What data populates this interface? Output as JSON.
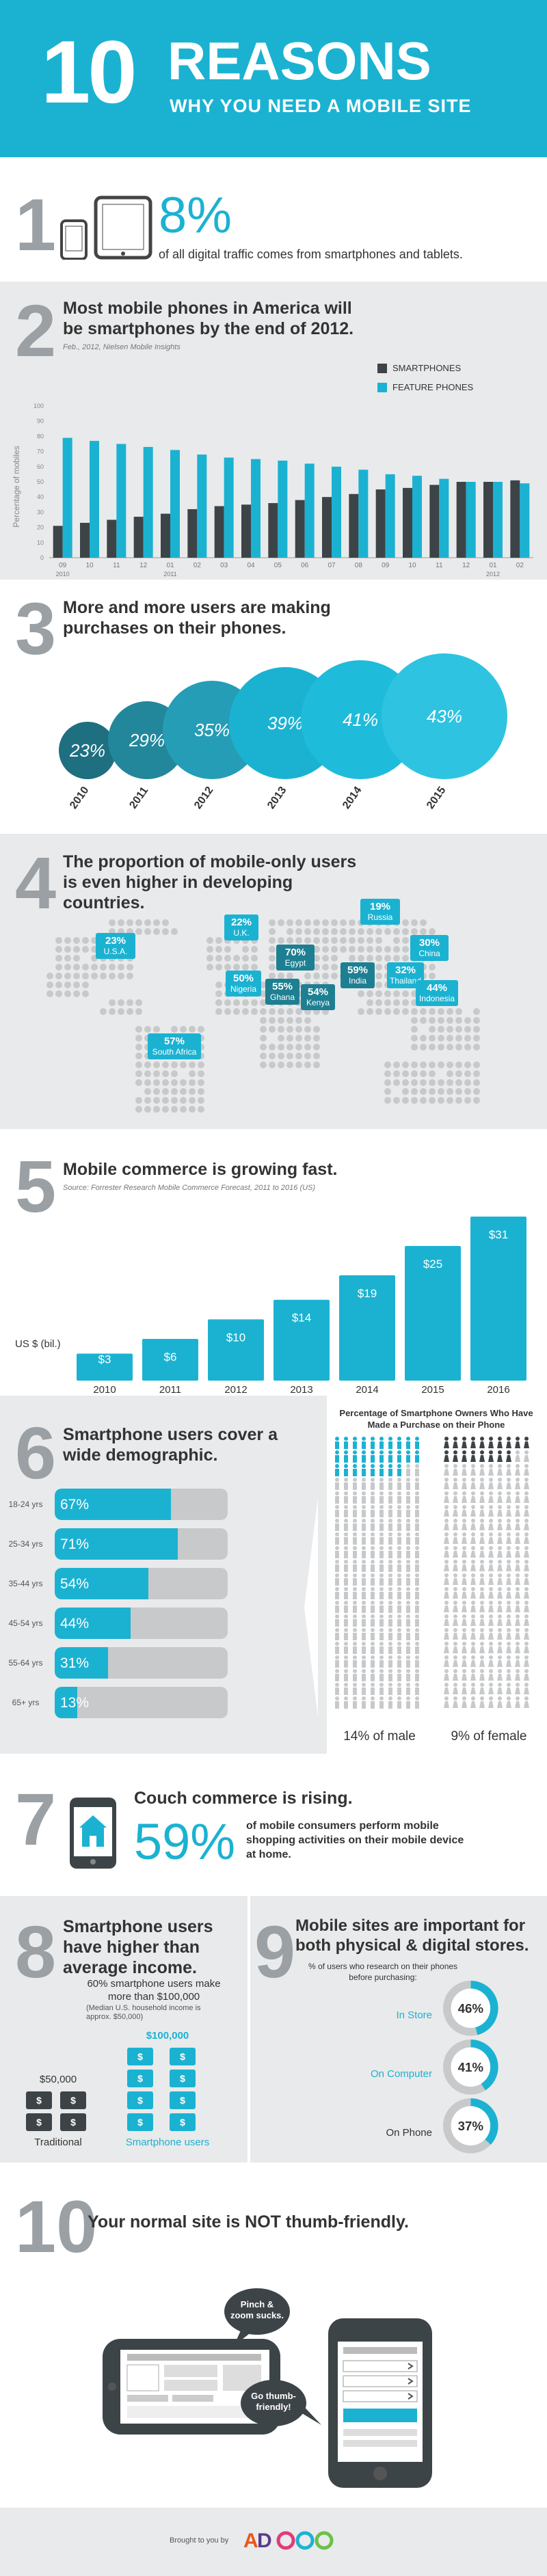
{
  "header": {
    "number": "10",
    "title": "REASONS",
    "subtitle": "WHY YOU NEED A MOBILE SITE"
  },
  "s1": {
    "number": "1",
    "stat": "8%",
    "text": "of all digital traffic comes from smartphones and tablets."
  },
  "s2": {
    "number": "2",
    "heading": "Most mobile phones in America will be smartphones by the end of 2012.",
    "source": "Feb., 2012, Nielsen Mobile Insights"
  },
  "s3": {
    "number": "3",
    "heading": "More and more users are making purchases on their phones."
  },
  "s4": {
    "number": "4",
    "heading": "The proportion of mobile-only users is even higher in developing countries."
  },
  "s5": {
    "number": "5",
    "heading": "Mobile commerce is growing fast.",
    "source": "Source: Forrester Research Mobile Commerce Forecast, 2011 to 2016 (US)"
  },
  "s6": {
    "number": "6",
    "heading": "Smartphone users cover a wide demographic.",
    "right_title": "Percentage of Smartphone Owners Who Have Made a Purchase on their Phone",
    "male_label": "14% of male",
    "female_label": "9% of female",
    "male_fraction": 0.14,
    "female_fraction": 0.09,
    "ages": [
      {
        "label": "18-24 yrs",
        "value": "67%",
        "fraction": 0.67
      },
      {
        "label": "25-34 yrs",
        "value": "71%",
        "fraction": 0.71
      },
      {
        "label": "35-44 yrs",
        "value": "54%",
        "fraction": 0.54
      },
      {
        "label": "45-54 yrs",
        "value": "44%",
        "fraction": 0.44
      },
      {
        "label": "55-64 yrs",
        "value": "31%",
        "fraction": 0.31
      },
      {
        "label": "65+ yrs",
        "value": "13%",
        "fraction": 0.13
      }
    ]
  },
  "s7": {
    "number": "7",
    "heading": "Couch commerce is rising.",
    "stat": "59%",
    "text": "of mobile consumers perform mobile shopping activities on their mobile device at home."
  },
  "s8": {
    "number": "8",
    "heading": "Smartphone users have higher than average income.",
    "text": "60% smartphone users make more than $100,000",
    "note": "(Median U.S. household income is approx. $50,000)",
    "traditional_amount": "$50,000",
    "smart_amount": "$100,000",
    "traditional_label": "Traditional",
    "smart_label": "Smartphone users",
    "dollar_glyph": "$"
  },
  "s9": {
    "number": "9",
    "heading": "Mobile sites are important for both physical & digital stores.",
    "intro": "% of users who research on their phones before purchasing:",
    "items": [
      {
        "label": "In Store",
        "value": "46%",
        "fraction": 0.46
      },
      {
        "label": "On Computer",
        "value": "41%",
        "fraction": 0.41
      },
      {
        "label": "On Phone",
        "value": "37%",
        "fraction": 0.37
      }
    ]
  },
  "s10": {
    "number": "10",
    "heading": "Your normal site is NOT thumb-friendly.",
    "bubble_bad": "Pinch & zoom sucks.",
    "bubble_good": "Go thumb-friendly!"
  },
  "footer": {
    "text": "Brought to you by",
    "logo_text": "ADDOO"
  },
  "colors": {
    "accent": "#1bb2d2",
    "dark_teal": "#1e7f92",
    "dark_gray": "#3d4448",
    "section_bg": "#e9eaeb"
  },
  "chart_data": [
    {
      "type": "bar",
      "title": "Most mobile phones in America will be smartphones by the end of 2012.",
      "ylabel": "Percentage of mobiles",
      "ylim": [
        0,
        100
      ],
      "yticks": [
        "0",
        "10",
        "20",
        "30",
        "40",
        "50",
        "60",
        "70",
        "80",
        "90",
        "100"
      ],
      "categories": [
        "09",
        "10",
        "11",
        "12",
        "01",
        "02",
        "03",
        "04",
        "05",
        "06",
        "07",
        "08",
        "09",
        "10",
        "11",
        "12",
        "01",
        "02"
      ],
      "year_labels": [
        "2010",
        "2011",
        "2012"
      ],
      "series": [
        {
          "name": "SMARTPHONES",
          "values": [
            21,
            23,
            25,
            27,
            29,
            32,
            34,
            35,
            36,
            38,
            40,
            42,
            45,
            46,
            48,
            50,
            50,
            51
          ]
        },
        {
          "name": "FEATURE PHONES",
          "values": [
            79,
            77,
            75,
            73,
            71,
            68,
            66,
            65,
            64,
            62,
            60,
            58,
            55,
            54,
            52,
            50,
            50,
            49
          ]
        }
      ]
    },
    {
      "type": "bubble",
      "categories": [
        "2010",
        "2011",
        "2012",
        "2013",
        "2014",
        "2015"
      ],
      "values": [
        23,
        29,
        35,
        39,
        41,
        43
      ],
      "labels": [
        "23%",
        "29%",
        "35%",
        "39%",
        "41%",
        "43%"
      ]
    },
    {
      "type": "bar",
      "title": "Mobile commerce is growing fast.",
      "ylabel": "US $ (bil.)",
      "categories": [
        "2010",
        "2011",
        "2012",
        "2013",
        "2014",
        "2015",
        "2016"
      ],
      "values": [
        3,
        6,
        10,
        14,
        19,
        25,
        31
      ],
      "labels": [
        "$3",
        "$6",
        "$10",
        "$14",
        "$19",
        "$25",
        "$31"
      ]
    }
  ],
  "map": {
    "badges": [
      {
        "value": "23%",
        "label": "U.S.A."
      },
      {
        "value": "22%",
        "label": "U.K."
      },
      {
        "value": "19%",
        "label": "Russia"
      },
      {
        "value": "30%",
        "label": "China"
      },
      {
        "value": "70%",
        "label": "Egypt"
      },
      {
        "value": "50%",
        "label": "Nigeria"
      },
      {
        "value": "55%",
        "label": "Ghana"
      },
      {
        "value": "54%",
        "label": "Kenya"
      },
      {
        "value": "59%",
        "label": "India"
      },
      {
        "value": "32%",
        "label": "Thailand"
      },
      {
        "value": "44%",
        "label": "Indonesia"
      },
      {
        "value": "57%",
        "label": "South Africa"
      }
    ]
  }
}
